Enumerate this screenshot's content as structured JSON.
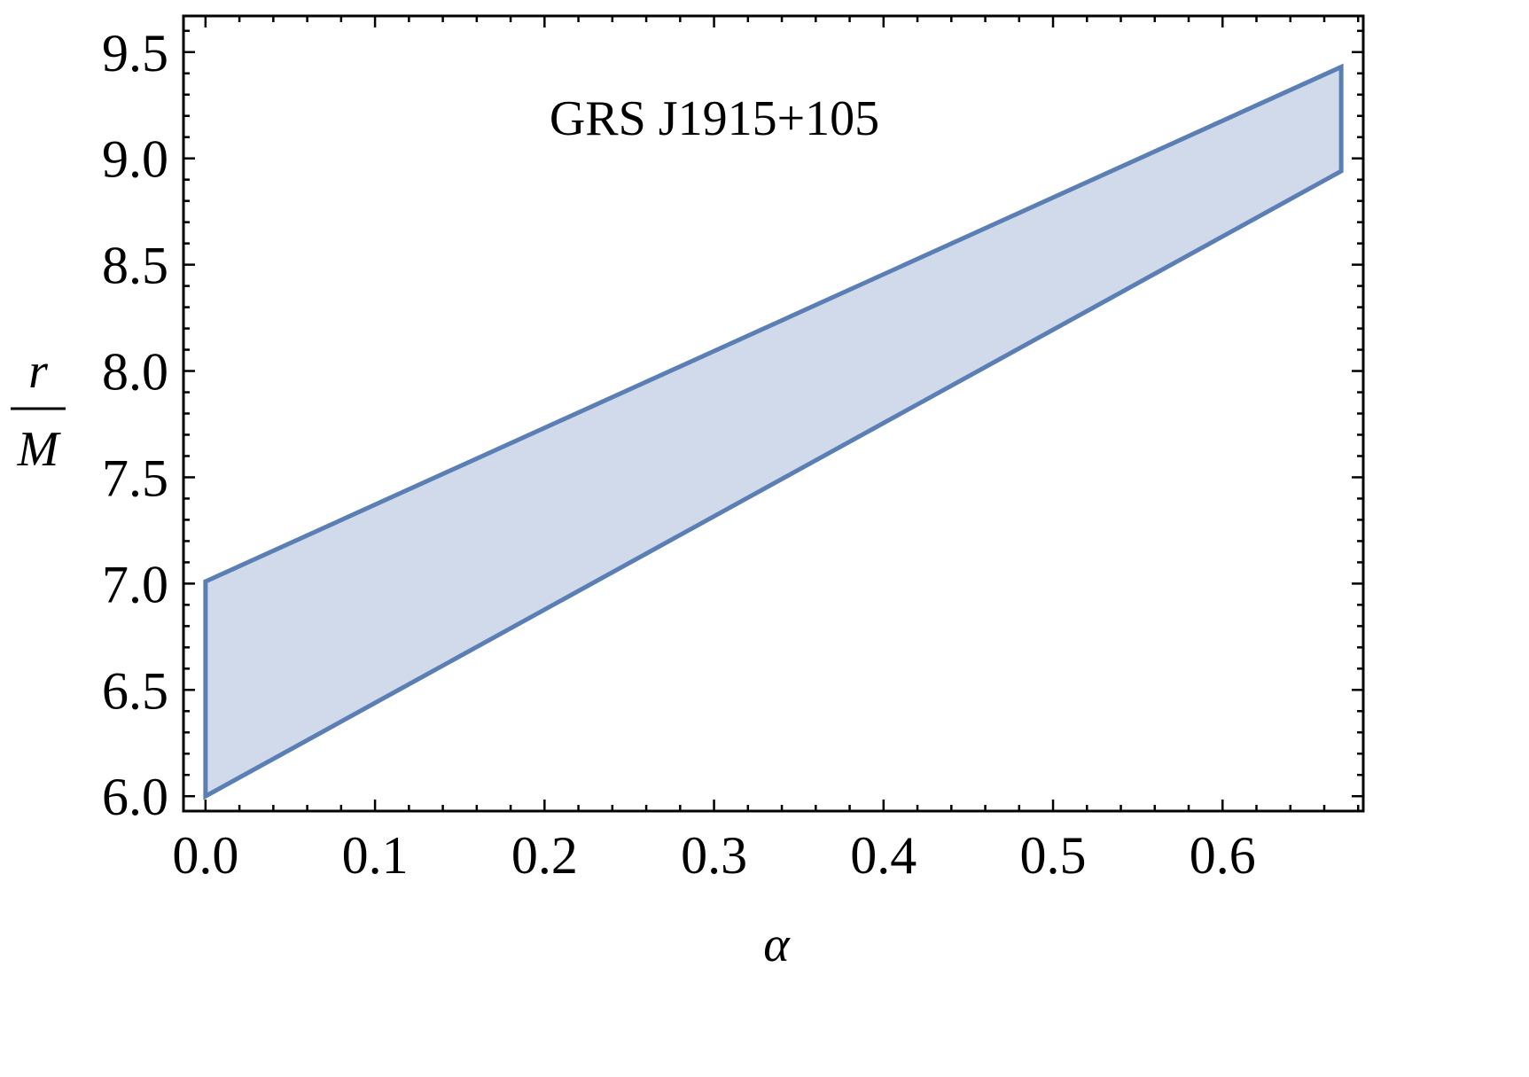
{
  "chart_data": {
    "type": "area",
    "annotation": "GRS J1915+105",
    "xlabel": "α",
    "ylabel": {
      "numerator": "r",
      "denominator": "M"
    },
    "xlim": [
      -0.013,
      0.683
    ],
    "ylim": [
      5.93,
      9.67
    ],
    "x_ticks": [
      {
        "value": 0.0,
        "label": "0.0"
      },
      {
        "value": 0.1,
        "label": "0.1"
      },
      {
        "value": 0.2,
        "label": "0.2"
      },
      {
        "value": 0.3,
        "label": "0.3"
      },
      {
        "value": 0.4,
        "label": "0.4"
      },
      {
        "value": 0.5,
        "label": "0.5"
      },
      {
        "value": 0.6,
        "label": "0.6"
      }
    ],
    "y_ticks": [
      {
        "value": 6.0,
        "label": "6.0"
      },
      {
        "value": 6.5,
        "label": "6.5"
      },
      {
        "value": 7.0,
        "label": "7.0"
      },
      {
        "value": 7.5,
        "label": "7.5"
      },
      {
        "value": 8.0,
        "label": "8.0"
      },
      {
        "value": 8.5,
        "label": "8.5"
      },
      {
        "value": 9.0,
        "label": "9.0"
      },
      {
        "value": 9.5,
        "label": "9.5"
      }
    ],
    "x_minor_step": 0.02,
    "y_minor_step": 0.1,
    "region": {
      "upper": {
        "x": [
          0.0,
          0.67
        ],
        "y": [
          7.01,
          9.43
        ]
      },
      "lower": {
        "x": [
          0.0,
          0.67
        ],
        "y": [
          6.0,
          8.94
        ]
      }
    },
    "grid": false,
    "legend": "none",
    "colors": {
      "stroke": "#5b7fb5",
      "fill": "#d0daea",
      "frame": "#000000"
    }
  }
}
